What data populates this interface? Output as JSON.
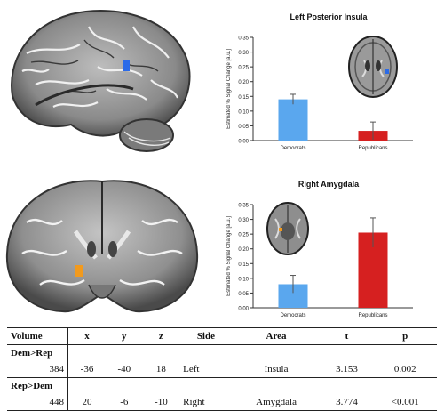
{
  "chart_data": [
    {
      "type": "bar",
      "title": "Left Posterior Insula",
      "ylabel": "Estimated % Signal Change [a.u.]",
      "categories": [
        "Democrats",
        "Republicans"
      ],
      "values": [
        0.14,
        0.033
      ],
      "errors": [
        0.017,
        0.03
      ],
      "colors": [
        "#5aa7ee",
        "#d62020"
      ],
      "ylim": [
        0,
        0.35
      ],
      "yticks": [
        "0.00",
        "0.05",
        "0.10",
        "0.15",
        "0.20",
        "0.25",
        "0.30",
        "0.35"
      ],
      "grid": false
    },
    {
      "type": "bar",
      "title": "Right Amygdala",
      "ylabel": "Estimated % Signal Change [a.u.]",
      "categories": [
        "Democrats",
        "Republicans"
      ],
      "values": [
        0.08,
        0.255
      ],
      "errors": [
        0.03,
        0.05
      ],
      "colors": [
        "#5aa7ee",
        "#d62020"
      ],
      "ylim": [
        0,
        0.35
      ],
      "yticks": [
        "0.00",
        "0.05",
        "0.10",
        "0.15",
        "0.20",
        "0.25",
        "0.30",
        "0.35"
      ],
      "grid": false
    }
  ],
  "table": {
    "headers": [
      "Volume",
      "x",
      "y",
      "z",
      "Side",
      "Area",
      "t",
      "p"
    ],
    "groups": [
      {
        "label": "Dem>Rep",
        "row": [
          "384",
          "-36",
          "-40",
          "18",
          "Left",
          "Insula",
          "3.153",
          "0.002"
        ]
      },
      {
        "label": "Rep>Dem",
        "row": [
          "448",
          "20",
          "-6",
          "-10",
          "Right",
          "Amygdala",
          "3.774",
          "<0.001"
        ]
      }
    ]
  }
}
